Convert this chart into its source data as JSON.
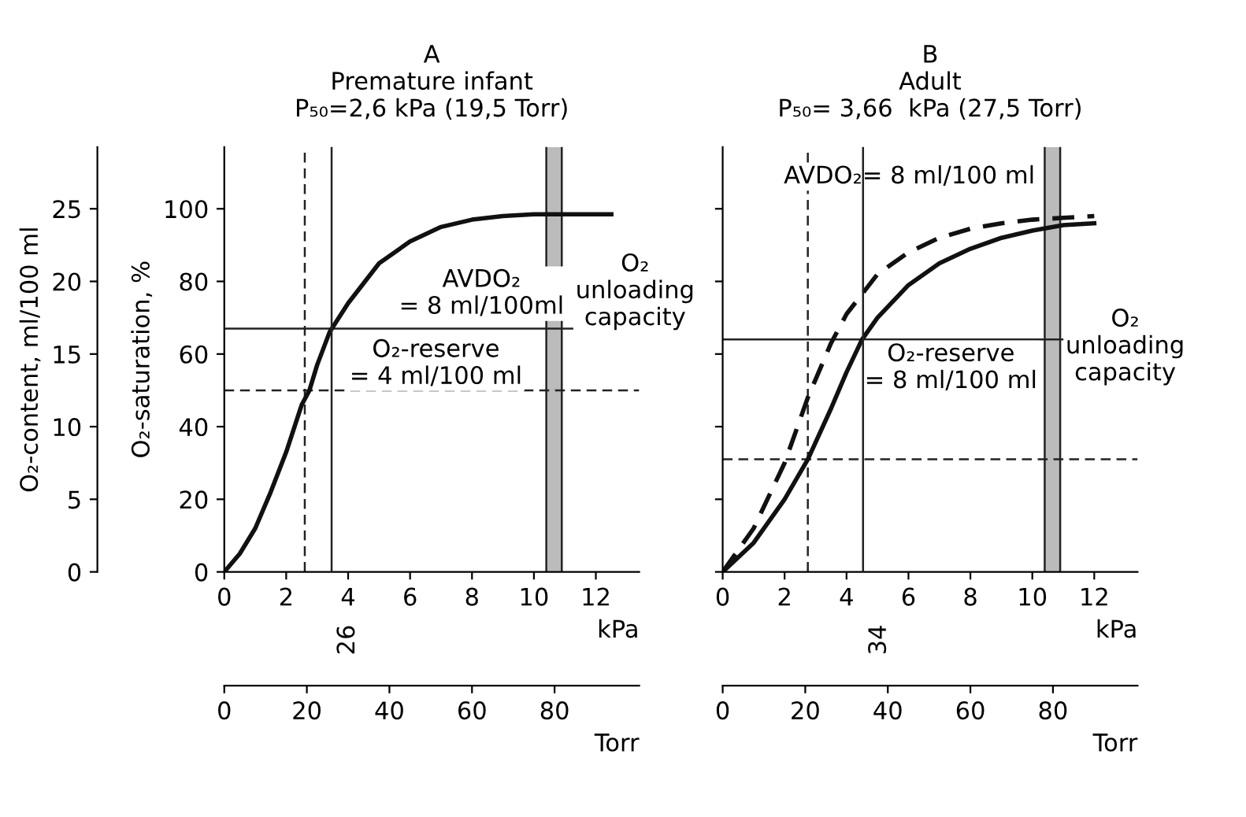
{
  "chart_data": [
    {
      "type": "line",
      "title": "A\nPremature infant\nP₅₀=2,6 kPa (19,5 Torr)",
      "xlabel": "kPa",
      "ylabel": "O₂-saturation, %",
      "y2label": "O₂-content, ml/100 ml",
      "x2label": "Torr",
      "series": [
        {
          "color": "#111111",
          "line_style": "solid",
          "x": [
            0,
            0.5,
            1,
            1.5,
            2,
            2.5,
            2.75,
            3,
            3.4,
            4,
            5,
            6,
            7,
            8,
            9,
            10,
            11,
            12.5
          ],
          "values": [
            0,
            5,
            12,
            22,
            33,
            46,
            50,
            57,
            66,
            74,
            85,
            91,
            95,
            97,
            98,
            98.5,
            98.5,
            98.5
          ]
        }
      ],
      "xlim": [
        0,
        13.4
      ],
      "ylim": [
        0,
        117
      ],
      "xticks": [
        0,
        2,
        4,
        6,
        8,
        10,
        12
      ],
      "yticks": [
        0,
        20,
        40,
        60,
        80,
        100
      ],
      "x2lim": [
        0,
        100.5
      ],
      "x2ticks": [
        0,
        20,
        40,
        60,
        80
      ],
      "y2lim": [
        0,
        29.25
      ],
      "y2ticks": [
        0,
        5,
        10,
        15,
        20,
        25
      ],
      "ref_lines": [
        {
          "axis": "y",
          "value": 67,
          "line_style": "solid"
        },
        {
          "axis": "y",
          "value": 50,
          "line_style": "dashed"
        },
        {
          "axis": "x2",
          "value": 26,
          "line_style": "solid",
          "label": "26"
        },
        {
          "axis": "x",
          "value": 2.6,
          "line_style": "dashed"
        },
        {
          "axis": "x",
          "value": 10.4,
          "line_style": "solid"
        },
        {
          "axis": "x",
          "value": 10.9,
          "line_style": "solid"
        }
      ],
      "bands": [
        {
          "axis": "x",
          "from": 10.4,
          "to": 10.9,
          "color": "#bbbbbb"
        }
      ],
      "annotations": [
        "AVDO₂\n= 8 ml/100ml",
        "O₂-reserve\n= 4 ml/100 ml",
        "O₂\nunloading\ncapacity"
      ],
      "grid": false,
      "legend": false
    },
    {
      "type": "line",
      "title": "B\nAdult\nP₅₀= 3,66  kPa (27,5 Torr)",
      "xlabel": "kPa",
      "x2label": "Torr",
      "series": [
        {
          "color": "#111111",
          "line_style": "solid",
          "x": [
            0,
            1,
            2,
            2.75,
            3.5,
            4,
            4.5,
            5,
            6,
            7,
            8,
            9,
            10,
            11,
            12
          ],
          "values": [
            0,
            8,
            20,
            31,
            45,
            55,
            64,
            70,
            79,
            85,
            89,
            92,
            94,
            95.5,
            96
          ]
        },
        {
          "color": "#111111",
          "line_style": "dashed",
          "x": [
            0,
            1,
            2,
            2.75,
            3,
            3.5,
            4,
            5,
            6,
            7,
            8,
            9,
            10,
            11,
            12
          ],
          "values": [
            0,
            12,
            30,
            48,
            53,
            63,
            71,
            82,
            88,
            92,
            94.5,
            96,
            97,
            97.5,
            98
          ]
        }
      ],
      "xlim": [
        0,
        13.4
      ],
      "ylim": [
        0,
        117
      ],
      "xticks": [
        0,
        2,
        4,
        6,
        8,
        10,
        12
      ],
      "yticks": [
        0,
        20,
        40,
        60,
        80,
        100
      ],
      "tick_labels": "x",
      "x2lim": [
        0,
        100.5
      ],
      "x2ticks": [
        0,
        20,
        40,
        60,
        80
      ],
      "ref_lines": [
        {
          "axis": "y",
          "value": 64,
          "line_style": "solid"
        },
        {
          "axis": "y",
          "value": 31,
          "line_style": "dashed"
        },
        {
          "axis": "x2",
          "value": 34,
          "line_style": "solid",
          "label": "34"
        },
        {
          "axis": "x",
          "value": 2.75,
          "line_style": "dashed"
        },
        {
          "axis": "x",
          "value": 10.4,
          "line_style": "solid"
        },
        {
          "axis": "x",
          "value": 10.9,
          "line_style": "solid"
        }
      ],
      "bands": [
        {
          "axis": "x",
          "from": 10.4,
          "to": 10.9,
          "color": "#bbbbbb"
        }
      ],
      "annotations": [
        "AVDO₂= 8 ml/100 ml",
        "O₂-reserve\n= 8 ml/100 ml",
        "O₂\nunloading\ncapacity"
      ],
      "grid": false,
      "legend": false
    }
  ]
}
